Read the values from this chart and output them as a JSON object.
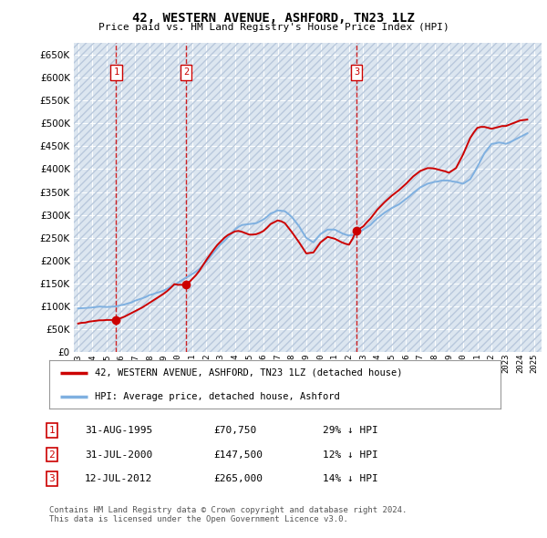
{
  "title": "42, WESTERN AVENUE, ASHFORD, TN23 1LZ",
  "subtitle": "Price paid vs. HM Land Registry's House Price Index (HPI)",
  "ylim": [
    0,
    675000
  ],
  "yticks": [
    0,
    50000,
    100000,
    150000,
    200000,
    250000,
    300000,
    350000,
    400000,
    450000,
    500000,
    550000,
    600000,
    650000
  ],
  "xlim_start": 1992.7,
  "xlim_end": 2025.5,
  "background_color": "#ffffff",
  "plot_bg_color": "#dce6f0",
  "grid_color": "#ffffff",
  "hatch_color": "#b8c8dc",
  "sale_dates": [
    1995.665,
    2000.578,
    2012.528
  ],
  "sale_prices": [
    70750,
    147500,
    265000
  ],
  "sale_labels": [
    "1",
    "2",
    "3"
  ],
  "vline_color": "#cc0000",
  "dot_color": "#cc0000",
  "legend_line1": "42, WESTERN AVENUE, ASHFORD, TN23 1LZ (detached house)",
  "legend_line2": "HPI: Average price, detached house, Ashford",
  "legend_color1": "#cc0000",
  "legend_color2": "#7fb0e0",
  "table_entries": [
    [
      "1",
      "31-AUG-1995",
      "£70,750",
      "29% ↓ HPI"
    ],
    [
      "2",
      "31-JUL-2000",
      "£147,500",
      "12% ↓ HPI"
    ],
    [
      "3",
      "12-JUL-2012",
      "£265,000",
      "14% ↓ HPI"
    ]
  ],
  "footer": "Contains HM Land Registry data © Crown copyright and database right 2024.\nThis data is licensed under the Open Government Licence v3.0.",
  "hpi_years": [
    1993.0,
    1993.25,
    1993.5,
    1993.75,
    1994.0,
    1994.25,
    1994.5,
    1994.75,
    1995.0,
    1995.25,
    1995.5,
    1995.75,
    1996.0,
    1996.25,
    1996.5,
    1996.75,
    1997.0,
    1997.25,
    1997.5,
    1997.75,
    1998.0,
    1998.25,
    1998.5,
    1998.75,
    1999.0,
    1999.25,
    1999.5,
    1999.75,
    2000.0,
    2000.25,
    2000.5,
    2000.75,
    2001.0,
    2001.25,
    2001.5,
    2001.75,
    2002.0,
    2002.25,
    2002.5,
    2002.75,
    2003.0,
    2003.25,
    2003.5,
    2003.75,
    2004.0,
    2004.25,
    2004.5,
    2004.75,
    2005.0,
    2005.25,
    2005.5,
    2005.75,
    2006.0,
    2006.25,
    2006.5,
    2006.75,
    2007.0,
    2007.25,
    2007.5,
    2007.75,
    2008.0,
    2008.25,
    2008.5,
    2008.75,
    2009.0,
    2009.25,
    2009.5,
    2009.75,
    2010.0,
    2010.25,
    2010.5,
    2010.75,
    2011.0,
    2011.25,
    2011.5,
    2011.75,
    2012.0,
    2012.25,
    2012.5,
    2012.75,
    2013.0,
    2013.25,
    2013.5,
    2013.75,
    2014.0,
    2014.25,
    2014.5,
    2014.75,
    2015.0,
    2015.25,
    2015.5,
    2015.75,
    2016.0,
    2016.25,
    2016.5,
    2016.75,
    2017.0,
    2017.25,
    2017.5,
    2017.75,
    2018.0,
    2018.25,
    2018.5,
    2018.75,
    2019.0,
    2019.25,
    2019.5,
    2019.75,
    2020.0,
    2020.25,
    2020.5,
    2020.75,
    2021.0,
    2021.25,
    2021.5,
    2021.75,
    2022.0,
    2022.25,
    2022.5,
    2022.75,
    2023.0,
    2023.25,
    2023.5,
    2023.75,
    2024.0,
    2024.25,
    2024.5
  ],
  "hpi_values": [
    96000,
    96500,
    97000,
    97500,
    98000,
    99000,
    100000,
    99500,
    99000,
    99500,
    100000,
    101000,
    103000,
    104500,
    107000,
    109000,
    113000,
    115500,
    118000,
    121000,
    125000,
    127000,
    130000,
    132000,
    135000,
    139000,
    143000,
    147000,
    152000,
    157000,
    162000,
    166000,
    171000,
    176000,
    182000,
    190000,
    198000,
    208000,
    218000,
    227000,
    236000,
    243000,
    251000,
    259000,
    268000,
    274000,
    278000,
    279000,
    280000,
    281000,
    282000,
    286000,
    290000,
    296000,
    303000,
    306000,
    310000,
    309000,
    308000,
    302000,
    295000,
    285000,
    275000,
    262000,
    250000,
    245000,
    240000,
    249000,
    258000,
    263000,
    268000,
    268000,
    268000,
    264000,
    260000,
    257000,
    255000,
    256000,
    258000,
    263000,
    268000,
    273000,
    278000,
    286000,
    293000,
    299000,
    305000,
    310000,
    315000,
    319000,
    323000,
    329000,
    335000,
    341000,
    348000,
    354000,
    360000,
    364000,
    368000,
    370000,
    372000,
    373000,
    375000,
    375000,
    375000,
    373000,
    372000,
    370000,
    368000,
    373000,
    378000,
    391000,
    405000,
    420000,
    435000,
    445000,
    455000,
    456000,
    458000,
    457000,
    455000,
    458000,
    462000,
    466000,
    470000,
    474000,
    478000
  ],
  "price_line_years": [
    1993.0,
    1993.25,
    1993.5,
    1993.75,
    1994.0,
    1994.25,
    1994.5,
    1994.75,
    1995.0,
    1995.25,
    1995.5,
    1995.75,
    1996.0,
    1996.25,
    1996.5,
    1996.75,
    1997.0,
    1997.25,
    1997.5,
    1997.75,
    1998.0,
    1998.25,
    1998.5,
    1998.75,
    1999.0,
    1999.25,
    1999.5,
    1999.75,
    2000.0,
    2000.25,
    2000.5,
    2000.75,
    2001.0,
    2001.25,
    2001.5,
    2001.75,
    2002.0,
    2002.25,
    2002.5,
    2002.75,
    2003.0,
    2003.25,
    2003.5,
    2003.75,
    2004.0,
    2004.25,
    2004.5,
    2004.75,
    2005.0,
    2005.25,
    2005.5,
    2005.75,
    2006.0,
    2006.25,
    2006.5,
    2006.75,
    2007.0,
    2007.25,
    2007.5,
    2007.75,
    2008.0,
    2008.25,
    2008.5,
    2008.75,
    2009.0,
    2009.25,
    2009.5,
    2009.75,
    2010.0,
    2010.25,
    2010.5,
    2010.75,
    2011.0,
    2011.25,
    2011.5,
    2011.75,
    2012.0,
    2012.25,
    2012.5,
    2012.75,
    2013.0,
    2013.25,
    2013.5,
    2013.75,
    2014.0,
    2014.25,
    2014.5,
    2014.75,
    2015.0,
    2015.25,
    2015.5,
    2015.75,
    2016.0,
    2016.25,
    2016.5,
    2016.75,
    2017.0,
    2017.25,
    2017.5,
    2017.75,
    2018.0,
    2018.25,
    2018.5,
    2018.75,
    2019.0,
    2019.25,
    2019.5,
    2019.75,
    2020.0,
    2020.25,
    2020.5,
    2020.75,
    2021.0,
    2021.25,
    2021.5,
    2021.75,
    2022.0,
    2022.25,
    2022.5,
    2022.75,
    2023.0,
    2023.25,
    2023.5,
    2023.75,
    2024.0,
    2024.25,
    2024.5
  ],
  "price_line_values": [
    63000,
    64500,
    65000,
    67000,
    68000,
    69000,
    70000,
    70000,
    70750,
    70750,
    70750,
    72000,
    75000,
    78000,
    82000,
    86000,
    90000,
    94000,
    98000,
    103000,
    108000,
    113000,
    118000,
    123000,
    128000,
    134000,
    141000,
    149000,
    147500,
    147500,
    147500,
    152000,
    160000,
    168000,
    178000,
    190000,
    202000,
    213000,
    224000,
    234000,
    242000,
    250000,
    256000,
    260000,
    264000,
    265000,
    263000,
    260000,
    257000,
    257000,
    258000,
    261000,
    265000,
    272000,
    280000,
    284000,
    288000,
    286000,
    282000,
    272000,
    262000,
    251000,
    240000,
    228000,
    216000,
    217000,
    218000,
    229000,
    240000,
    246000,
    252000,
    250000,
    248000,
    244000,
    240000,
    237000,
    235000,
    248000,
    265000,
    270000,
    275000,
    284000,
    292000,
    302000,
    312000,
    320000,
    328000,
    335000,
    342000,
    348000,
    354000,
    361000,
    368000,
    376000,
    384000,
    390000,
    396000,
    399000,
    402000,
    402000,
    401000,
    399000,
    397000,
    395000,
    392000,
    397000,
    402000,
    417000,
    432000,
    450000,
    468000,
    480000,
    490000,
    492000,
    492000,
    490000,
    488000,
    490000,
    492000,
    494000,
    494000,
    497000,
    500000,
    503000,
    506000,
    507000,
    508000
  ]
}
